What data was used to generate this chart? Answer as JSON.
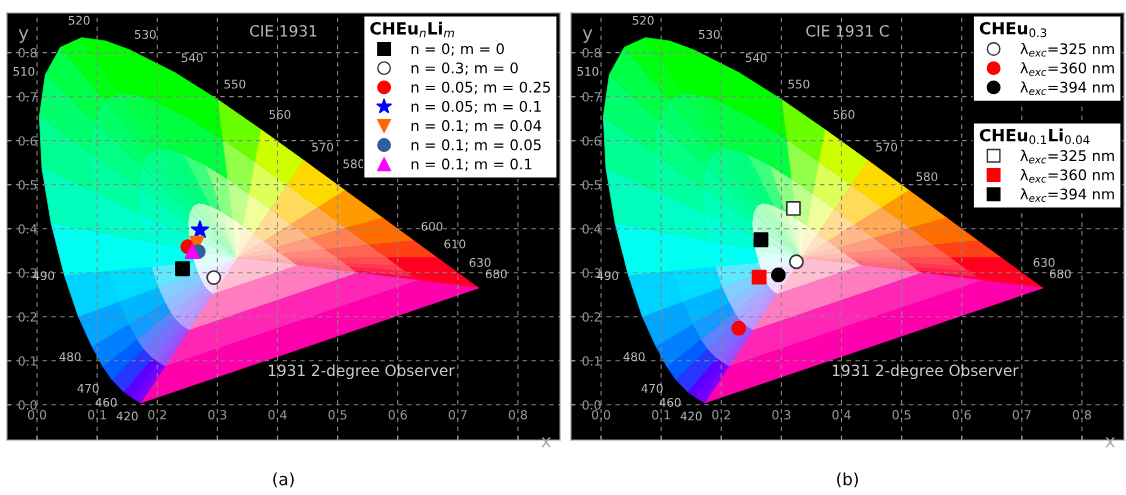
{
  "chart_data": [
    {
      "type": "scatter",
      "xlabel": "x",
      "ylabel": "y",
      "xlim": [
        -0.05,
        0.87
      ],
      "ylim": [
        -0.08,
        0.89
      ],
      "xticks": [
        {
          "value": 0,
          "label": "0.0"
        },
        0.1,
        0.2,
        0.3,
        0.4,
        0.5,
        0.6,
        0.7,
        0.8
      ],
      "yticks": [
        {
          "value": 0,
          "label": "0.0"
        },
        0.1,
        0.2,
        0.3,
        0.4,
        0.5,
        0.6,
        0.7,
        0.8
      ],
      "grid": true,
      "legend": "top right",
      "legend_title": [
        "CHEu$_{n}$Li$_{m}$"
      ],
      "series": [
        {
          "name": "n = 0; m = 0",
          "marker": "square",
          "color": "#000000",
          "x": [
            0.242
          ],
          "values": [
            0.309
          ]
        },
        {
          "name": "n = 0.3; m = 0",
          "marker": "circle",
          "color": "#ffffff",
          "x": [
            0.294
          ],
          "values": [
            0.289
          ]
        },
        {
          "name": "n = 0.05; m = 0.25",
          "marker": "circle",
          "color": "#ff0000",
          "x": [
            0.251
          ],
          "values": [
            0.359
          ]
        },
        {
          "name": "n = 0.05; m = 0.1",
          "marker": "star",
          "color": "#0000ff",
          "x": [
            0.271
          ],
          "values": [
            0.397
          ]
        },
        {
          "name": "n = 0.1; m = 0.04",
          "marker": "triangle-down",
          "color": "#ff6600",
          "x": [
            0.266
          ],
          "values": [
            0.367
          ]
        },
        {
          "name": "n = 0.1; m = 0.05",
          "marker": "circle",
          "color": "#2e5e9e",
          "x": [
            0.268
          ],
          "values": [
            0.348
          ]
        },
        {
          "name": "n = 0.1; m = 0.1",
          "marker": "triangle",
          "color": "#ff00ff",
          "x": [
            0.258
          ],
          "values": [
            0.348
          ]
        }
      ],
      "annotations": [
        "CIE 1931",
        "1931 2-degree Observer",
        "(a)",
        "520",
        "530",
        "540",
        "550",
        "560",
        "570",
        "580",
        "600",
        "610",
        "630",
        "680",
        "510",
        "490",
        "480",
        "470",
        "460",
        "420"
      ]
    },
    {
      "type": "scatter",
      "xlabel": "x",
      "ylabel": "y",
      "xlim": [
        -0.05,
        0.87
      ],
      "ylim": [
        -0.08,
        0.89
      ],
      "xticks": [
        {
          "value": 0,
          "label": "0.0"
        },
        0.1,
        0.2,
        0.3,
        0.4,
        0.5,
        0.6,
        0.7,
        0.8
      ],
      "yticks": [
        {
          "value": 0,
          "label": "0.0"
        },
        0.1,
        0.2,
        0.3,
        0.4,
        0.5,
        0.6,
        0.7,
        0.8
      ],
      "grid": true,
      "legend": "top right",
      "legend_title": [
        "CHEu$_{0.3}$",
        "CHEu$_{0.1}$Li$_{0.04}$"
      ],
      "series": [
        {
          "name": "λ$_{exc}$=325 nm",
          "marker": "circle",
          "color": "#ffffff",
          "x": [
            0.325
          ],
          "values": [
            0.325
          ]
        },
        {
          "name": "λ$_{exc}$=360 nm",
          "marker": "circle",
          "color": "#ff0000",
          "x": [
            0.229
          ],
          "values": [
            0.174
          ]
        },
        {
          "name": "λ$_{exc}$=394 nm",
          "marker": "circle",
          "color": "#000000",
          "x": [
            0.295
          ],
          "values": [
            0.295
          ]
        },
        {
          "name": "λ$_{exc}$=325 nm",
          "marker": "square",
          "color": "#ffffff",
          "x": [
            0.32
          ],
          "values": [
            0.446
          ]
        },
        {
          "name": "λ$_{exc}$=360 nm",
          "marker": "square",
          "color": "#ff0000",
          "x": [
            0.263
          ],
          "values": [
            0.29
          ]
        },
        {
          "name": "λ$_{exc}$=394 nm",
          "marker": "square",
          "color": "#000000",
          "x": [
            0.266
          ],
          "values": [
            0.375
          ]
        }
      ],
      "annotations": [
        "CIE 1931 C",
        "1931 2-degree Observer",
        "(b)",
        "520",
        "530",
        "540",
        "550",
        "560",
        "570",
        "580",
        "630",
        "680",
        "510",
        "490",
        "480",
        "470",
        "460",
        "420"
      ]
    }
  ]
}
